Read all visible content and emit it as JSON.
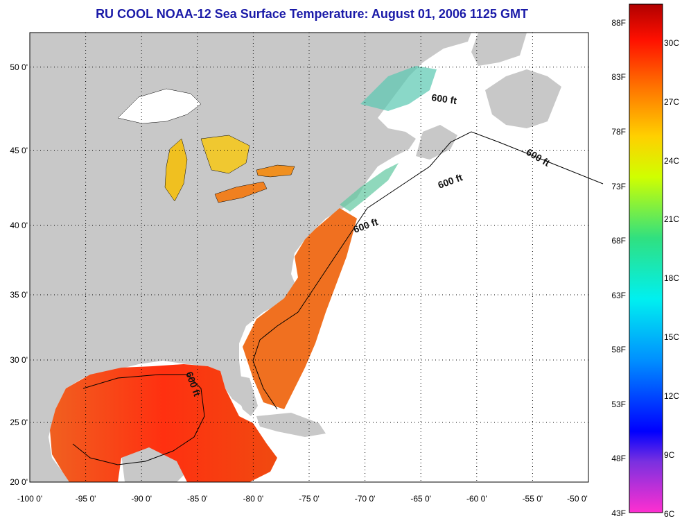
{
  "title": "RU COOL  NOAA-12  Sea Surface Temperature:  August 01, 2006 1125 GMT",
  "map": {
    "lon_range": [
      -100,
      -50
    ],
    "lat_range": [
      20,
      52.5
    ],
    "lon_ticks": [
      "-100 0'",
      "-95 0'",
      "-90 0'",
      "-85 0'",
      "-80 0'",
      "-75 0'",
      "-70 0'",
      "-65 0'",
      "-60 0'",
      "-55 0'",
      "-50 0'"
    ],
    "lat_ticks": [
      "50 0'",
      "45 0'",
      "40 0'",
      "35 0'",
      "30 0'",
      "25 0'",
      "20 0'"
    ],
    "grid": "dotted",
    "land_color": "#c8c8c8",
    "no_data_color": "#ffffff",
    "contour_label": "600 ft"
  },
  "colorbar": {
    "f_labels": [
      "88F",
      "83F",
      "78F",
      "73F",
      "68F",
      "63F",
      "58F",
      "53F",
      "48F",
      "43F"
    ],
    "c_labels": [
      "30C",
      "27C",
      "24C",
      "21C",
      "18C",
      "15C",
      "12C",
      "9C",
      "6C"
    ],
    "range_c": [
      6,
      32
    ]
  }
}
